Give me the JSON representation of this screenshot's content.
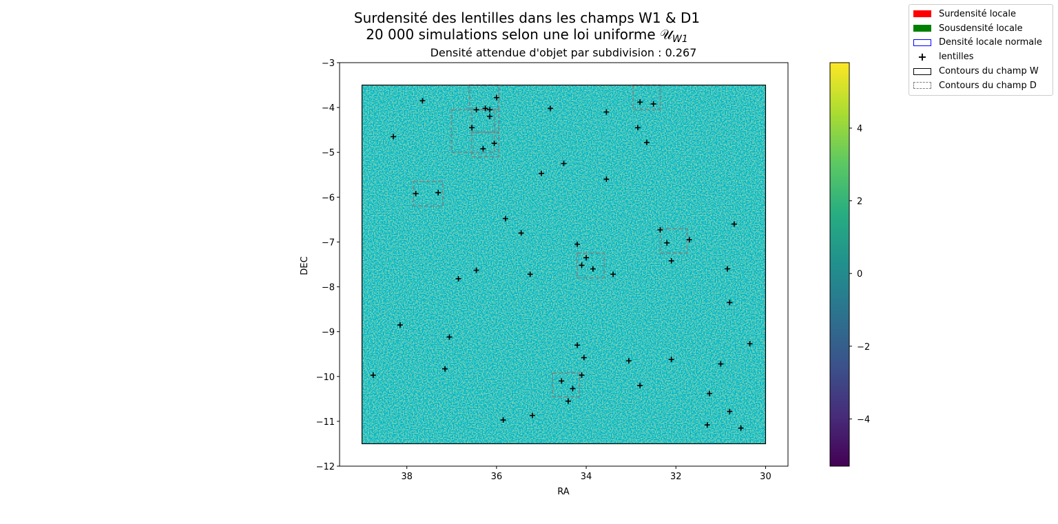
{
  "chart_data": {
    "type": "heatmap",
    "title_line1": "Surdensité des lentilles dans les champs W1 & D1",
    "title_line2": "20 000 simulations selon une loi uniforme 𝒰",
    "title_line2_subscript": "W1",
    "subtitle": "Densité attendue d'objet par subdivision : 0.267",
    "xlabel": "RA",
    "ylabel": "DEC",
    "xlim": [
      39.5,
      29.5
    ],
    "ylim": [
      -12,
      -3
    ],
    "xticks": [
      38,
      36,
      34,
      32,
      30
    ],
    "yticks": [
      -3,
      -4,
      -5,
      -6,
      -7,
      -8,
      -9,
      -10,
      -11,
      -12
    ],
    "x_inverted": true,
    "grid": false,
    "heatmap_extent": {
      "ra": [
        39,
        30
      ],
      "dec": [
        -11.5,
        -3.5
      ]
    },
    "colorbar": {
      "colormap": "viridis",
      "range": [
        -5.3,
        5.8
      ],
      "ticks": [
        4,
        2,
        0,
        -2,
        -4
      ],
      "tick_labels": [
        "4",
        "2",
        "0",
        "−2",
        "−4"
      ]
    },
    "lenses": [
      [
        37.65,
        -3.85
      ],
      [
        36.45,
        -4.05
      ],
      [
        36.25,
        -4.02
      ],
      [
        36.15,
        -4.05
      ],
      [
        36.15,
        -4.2
      ],
      [
        36.0,
        -3.78
      ],
      [
        34.8,
        -4.02
      ],
      [
        33.55,
        -4.1
      ],
      [
        32.8,
        -3.88
      ],
      [
        32.5,
        -3.92
      ],
      [
        38.3,
        -4.65
      ],
      [
        36.55,
        -4.45
      ],
      [
        36.3,
        -4.92
      ],
      [
        36.05,
        -4.8
      ],
      [
        32.85,
        -4.45
      ],
      [
        32.65,
        -4.78
      ],
      [
        35.0,
        -5.47
      ],
      [
        34.5,
        -5.25
      ],
      [
        33.55,
        -5.6
      ],
      [
        37.8,
        -5.92
      ],
      [
        37.3,
        -5.9
      ],
      [
        35.8,
        -6.48
      ],
      [
        35.45,
        -6.8
      ],
      [
        32.35,
        -6.73
      ],
      [
        32.2,
        -7.02
      ],
      [
        31.7,
        -6.95
      ],
      [
        30.7,
        -6.6
      ],
      [
        34.2,
        -7.05
      ],
      [
        34.0,
        -7.35
      ],
      [
        34.1,
        -7.52
      ],
      [
        33.85,
        -7.6
      ],
      [
        33.4,
        -7.72
      ],
      [
        32.1,
        -7.42
      ],
      [
        30.85,
        -7.6
      ],
      [
        36.45,
        -7.63
      ],
      [
        35.25,
        -7.72
      ],
      [
        36.85,
        -7.82
      ],
      [
        30.8,
        -8.35
      ],
      [
        38.15,
        -8.85
      ],
      [
        37.05,
        -9.12
      ],
      [
        34.2,
        -9.3
      ],
      [
        34.05,
        -9.58
      ],
      [
        33.05,
        -9.65
      ],
      [
        32.1,
        -9.62
      ],
      [
        31.0,
        -9.72
      ],
      [
        30.35,
        -9.27
      ],
      [
        38.75,
        -9.97
      ],
      [
        37.15,
        -9.83
      ],
      [
        34.55,
        -10.1
      ],
      [
        34.3,
        -10.27
      ],
      [
        34.1,
        -9.97
      ],
      [
        34.4,
        -10.55
      ],
      [
        32.8,
        -10.2
      ],
      [
        31.25,
        -10.38
      ],
      [
        30.8,
        -10.78
      ],
      [
        35.85,
        -10.97
      ],
      [
        35.2,
        -10.87
      ],
      [
        31.3,
        -11.08
      ],
      [
        30.55,
        -11.15
      ]
    ],
    "d_field_contours": [
      [
        36.6,
        -3.5,
        35.95,
        -4.05
      ],
      [
        37.0,
        -4.05,
        36.05,
        -5.0
      ],
      [
        36.55,
        -4.05,
        35.95,
        -4.55
      ],
      [
        36.55,
        -4.55,
        35.95,
        -5.1
      ],
      [
        37.85,
        -5.65,
        37.2,
        -6.2
      ],
      [
        32.95,
        -3.5,
        32.35,
        -4.05
      ],
      [
        32.35,
        -6.7,
        31.75,
        -7.25
      ],
      [
        34.2,
        -7.25,
        33.6,
        -7.8
      ],
      [
        34.75,
        -9.92,
        34.15,
        -10.45
      ]
    ],
    "w_field_contour": [
      39.0,
      -3.5,
      30.0,
      -11.5
    ]
  },
  "legend": {
    "items": [
      {
        "label": "Surdensité locale",
        "swatch": "fill-red"
      },
      {
        "label": "Sousdensité locale",
        "swatch": "fill-green"
      },
      {
        "label": "Densité locale normale",
        "swatch": "outline-blue"
      },
      {
        "label": "lentilles",
        "swatch": "plus"
      },
      {
        "label": "Contours du champ W",
        "swatch": "outline-black"
      },
      {
        "label": "Contours du champ D",
        "swatch": "outline-dashed"
      }
    ]
  }
}
